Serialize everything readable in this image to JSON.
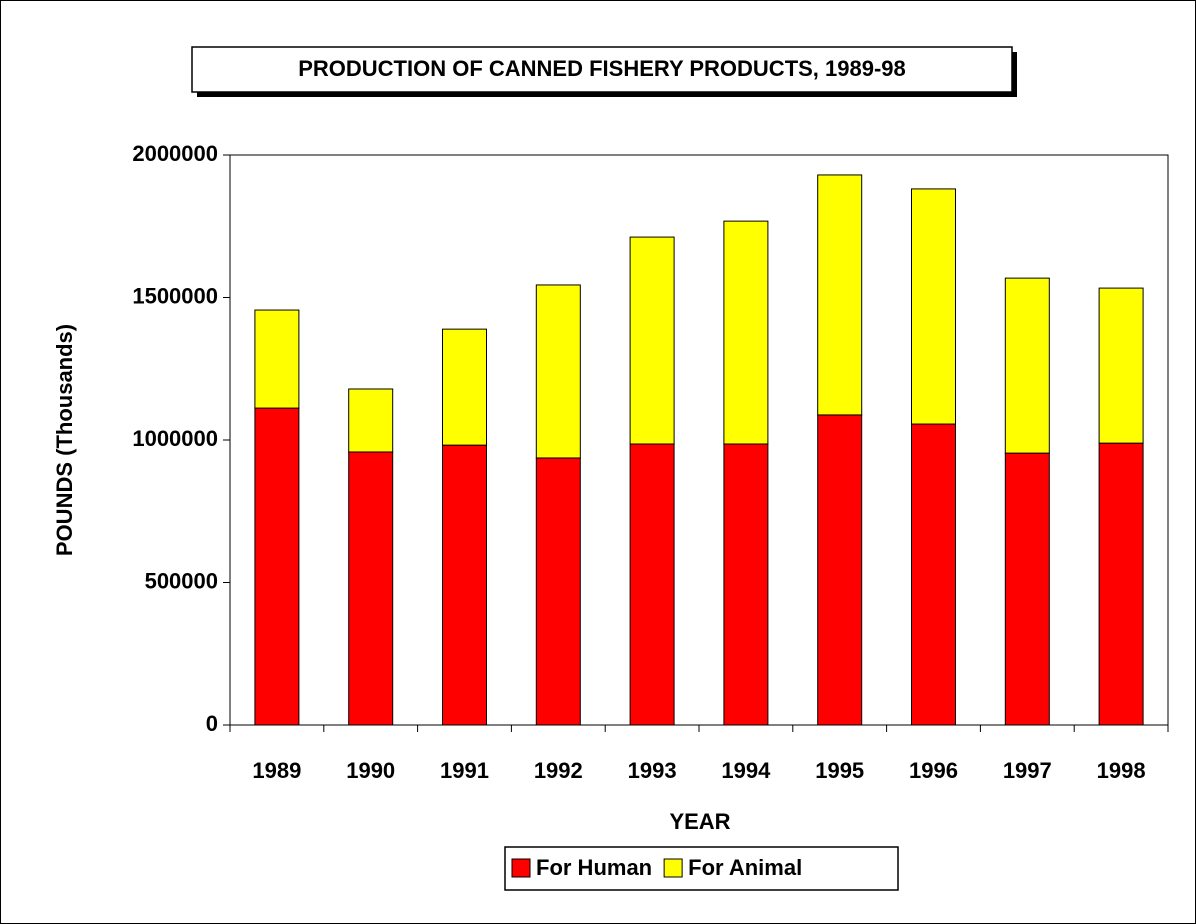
{
  "chart_data": {
    "type": "stacked_bar",
    "title": "PRODUCTION OF CANNED FISHERY PRODUCTS, 1989-98",
    "x_label": "YEAR",
    "y_label": "POUNDS (Thousands)",
    "categories": [
      "1989",
      "1990",
      "1991",
      "1992",
      "1993",
      "1994",
      "1995",
      "1996",
      "1997",
      "1998"
    ],
    "series": [
      {
        "name": "For Human",
        "color": "#ff0000",
        "values": [
          1112000,
          958000,
          982000,
          937000,
          986000,
          986000,
          1088000,
          1056000,
          954000,
          989000
        ]
      },
      {
        "name": "For Animal",
        "color": "#ffff00",
        "values": [
          344000,
          221000,
          407000,
          607000,
          726000,
          782000,
          842000,
          825000,
          614000,
          544000
        ]
      }
    ],
    "ylim": [
      0,
      2000000
    ],
    "yticks": [
      0,
      500000,
      1000000,
      1500000,
      2000000
    ],
    "grid": false,
    "legend": "bottom"
  }
}
